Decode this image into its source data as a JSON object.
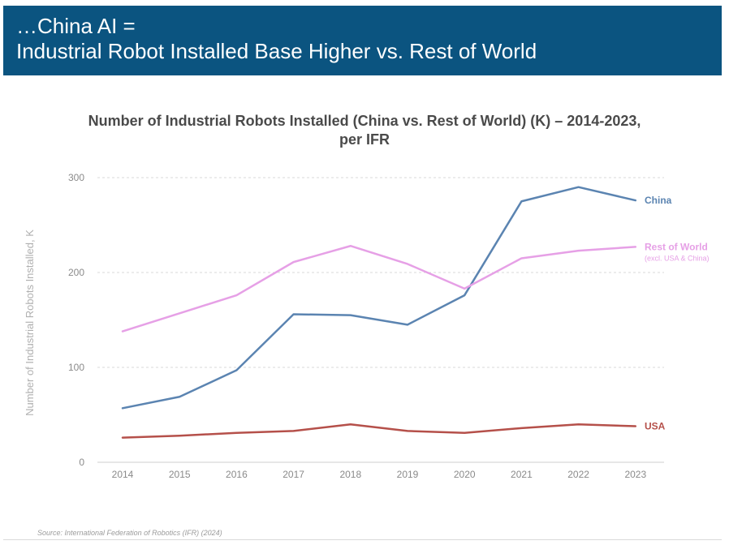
{
  "header": {
    "line1": "…China AI =",
    "line2": "Industrial Robot Installed Base Higher vs. Rest of World"
  },
  "source": "Source: International Federation of Robotics (IFR) (2024)",
  "chart_data": {
    "type": "line",
    "title": "Number of Industrial Robots Installed (China vs. Rest of World) (K) – 2014-2023,",
    "subtitle": "per IFR",
    "ylabel": "Number of Industrial Robots Installed, K",
    "xlabel": "",
    "ylim": [
      0,
      300
    ],
    "yticks": [
      0,
      100,
      200,
      300
    ],
    "grid": true,
    "categories": [
      "2014",
      "2015",
      "2016",
      "2017",
      "2018",
      "2019",
      "2020",
      "2021",
      "2022",
      "2023"
    ],
    "series": [
      {
        "name": "China",
        "color": "#5b84b1",
        "values": [
          57,
          69,
          97,
          156,
          155,
          145,
          176,
          275,
          290,
          276
        ]
      },
      {
        "name": "Rest of World",
        "note": "(excl. USA & China)",
        "color": "#e6a0e6",
        "values": [
          138,
          157,
          176,
          211,
          228,
          209,
          183,
          215,
          223,
          227
        ]
      },
      {
        "name": "USA",
        "color": "#b5504a",
        "values": [
          26,
          28,
          31,
          33,
          40,
          33,
          31,
          36,
          40,
          38
        ]
      }
    ]
  }
}
